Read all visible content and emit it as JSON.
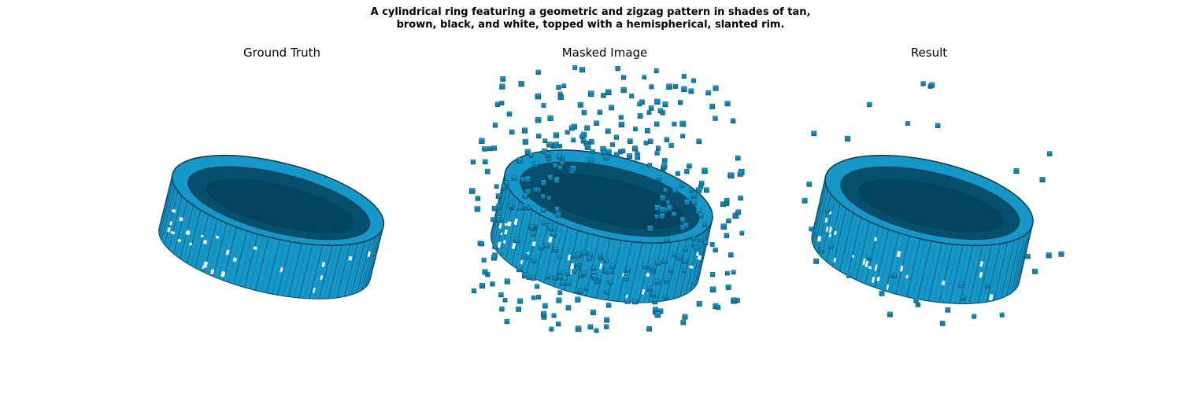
{
  "figure": {
    "suptitle": "A cylindrical ring featuring a geometric and zigzag pattern in shades of tan, brown, black, and white, topped with a hemispherical, slanted rim."
  },
  "panels": [
    {
      "title": "Ground Truth"
    },
    {
      "title": "Masked Image"
    },
    {
      "title": "Result"
    }
  ],
  "colors": {
    "voxel_light": "#1597c8",
    "voxel_mid": "#0e7fae",
    "voxel_dark": "#053f57",
    "voxel_top": "#06506e"
  },
  "voxel_scenes": [
    {
      "name": "ground-truth",
      "stray_voxels": 0
    },
    {
      "name": "masked",
      "stray_voxels": 420
    },
    {
      "name": "result",
      "stray_voxels": 40
    }
  ]
}
